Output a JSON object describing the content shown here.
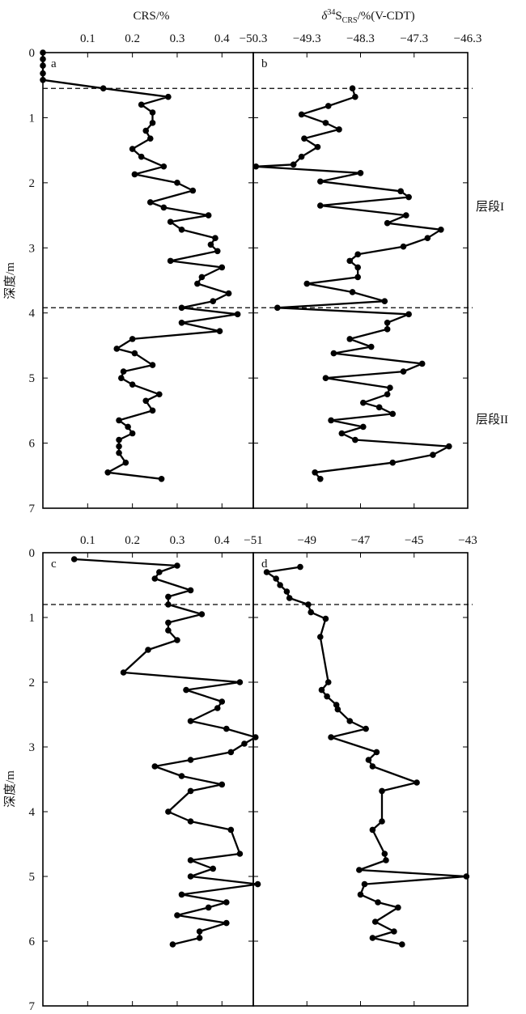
{
  "texts": {
    "crs_title": "CRS/%",
    "d34_title_delta": "δ",
    "d34_title_sup": "34",
    "d34_title_s": "S",
    "d34_title_sub": "CRS",
    "d34_title_unit": "/%(V-CDT)",
    "ylabel_top": "深度/m",
    "ylabel_bottom": "深度/m",
    "interval1": "层段I",
    "interval2": "层段II"
  },
  "chart_data": [
    {
      "id": "a",
      "type": "line",
      "panel_label": "a",
      "xlabel": "CRS/%",
      "ylabel": "深度/m",
      "xlim": [
        0,
        0.47
      ],
      "ylim": [
        7,
        0
      ],
      "xticks": [
        0.1,
        0.2,
        0.3,
        0.4
      ],
      "xtick_labels": [
        "0.1",
        "0.2",
        "0.3",
        "0.4"
      ],
      "yticks": [
        0,
        1,
        2,
        3,
        4,
        5,
        6,
        7
      ],
      "boundaries": [
        0.55,
        3.92
      ],
      "points": [
        [
          0,
          0
        ],
        [
          0,
          0.1
        ],
        [
          0,
          0.2
        ],
        [
          0,
          0.32
        ],
        [
          0,
          0.42
        ],
        [
          0.135,
          0.55
        ],
        [
          0.28,
          0.68
        ],
        [
          0.22,
          0.8
        ],
        [
          0.245,
          0.92
        ],
        [
          0.245,
          1.08
        ],
        [
          0.23,
          1.2
        ],
        [
          0.24,
          1.32
        ],
        [
          0.2,
          1.48
        ],
        [
          0.22,
          1.6
        ],
        [
          0.27,
          1.75
        ],
        [
          0.205,
          1.87
        ],
        [
          0.3,
          2.0
        ],
        [
          0.335,
          2.12
        ],
        [
          0.24,
          2.3
        ],
        [
          0.27,
          2.38
        ],
        [
          0.37,
          2.5
        ],
        [
          0.285,
          2.6
        ],
        [
          0.31,
          2.72
        ],
        [
          0.385,
          2.85
        ],
        [
          0.375,
          2.95
        ],
        [
          0.39,
          3.05
        ],
        [
          0.285,
          3.2
        ],
        [
          0.4,
          3.3
        ],
        [
          0.355,
          3.45
        ],
        [
          0.345,
          3.55
        ],
        [
          0.415,
          3.7
        ],
        [
          0.38,
          3.82
        ],
        [
          0.31,
          3.92
        ],
        [
          0.435,
          4.02
        ],
        [
          0.31,
          4.15
        ],
        [
          0.395,
          4.28
        ],
        [
          0.2,
          4.4
        ],
        [
          0.165,
          4.55
        ],
        [
          0.205,
          4.62
        ],
        [
          0.245,
          4.8
        ],
        [
          0.18,
          4.9
        ],
        [
          0.175,
          5.0
        ],
        [
          0.2,
          5.1
        ],
        [
          0.26,
          5.25
        ],
        [
          0.23,
          5.35
        ],
        [
          0.245,
          5.5
        ],
        [
          0.17,
          5.65
        ],
        [
          0.19,
          5.75
        ],
        [
          0.2,
          5.85
        ],
        [
          0.17,
          5.95
        ],
        [
          0.17,
          6.05
        ],
        [
          0.17,
          6.15
        ],
        [
          0.185,
          6.3
        ],
        [
          0.145,
          6.45
        ],
        [
          0.265,
          6.55
        ]
      ]
    },
    {
      "id": "b",
      "type": "line",
      "panel_label": "b",
      "xlabel": "δ34SCRS/%(V-CDT)",
      "xlim": [
        -50.3,
        -46.3
      ],
      "ylim": [
        7,
        0
      ],
      "xticks": [
        -50.3,
        -49.3,
        -48.3,
        -47.3,
        -46.3
      ],
      "xtick_labels": [
        "−50.3",
        "−49.3",
        "−48.3",
        "−47.3",
        "−46.3"
      ],
      "yticks": [
        0,
        1,
        2,
        3,
        4,
        5,
        6,
        7
      ],
      "boundaries": [
        0.55,
        3.92
      ],
      "points": [
        [
          -48.45,
          0.55
        ],
        [
          -48.4,
          0.68
        ],
        [
          -48.9,
          0.82
        ],
        [
          -49.4,
          0.95
        ],
        [
          -48.95,
          1.08
        ],
        [
          -48.7,
          1.18
        ],
        [
          -49.35,
          1.32
        ],
        [
          -49.1,
          1.45
        ],
        [
          -49.4,
          1.6
        ],
        [
          -49.55,
          1.72
        ],
        [
          -50.25,
          1.75
        ],
        [
          -48.3,
          1.85
        ],
        [
          -49.05,
          1.98
        ],
        [
          -47.55,
          2.13
        ],
        [
          -47.4,
          2.22
        ],
        [
          -49.05,
          2.35
        ],
        [
          -47.45,
          2.5
        ],
        [
          -47.8,
          2.62
        ],
        [
          -46.8,
          2.72
        ],
        [
          -47.05,
          2.85
        ],
        [
          -47.5,
          2.98
        ],
        [
          -48.35,
          3.1
        ],
        [
          -48.5,
          3.2
        ],
        [
          -48.35,
          3.3
        ],
        [
          -48.35,
          3.45
        ],
        [
          -49.3,
          3.55
        ],
        [
          -48.45,
          3.68
        ],
        [
          -47.85,
          3.82
        ],
        [
          -49.85,
          3.92
        ],
        [
          -47.4,
          4.02
        ],
        [
          -47.8,
          4.15
        ],
        [
          -47.8,
          4.25
        ],
        [
          -48.5,
          4.4
        ],
        [
          -48.1,
          4.52
        ],
        [
          -48.8,
          4.62
        ],
        [
          -47.15,
          4.78
        ],
        [
          -47.5,
          4.9
        ],
        [
          -48.95,
          5.0
        ],
        [
          -47.75,
          5.15
        ],
        [
          -47.8,
          5.25
        ],
        [
          -48.25,
          5.38
        ],
        [
          -47.95,
          5.45
        ],
        [
          -47.7,
          5.55
        ],
        [
          -48.85,
          5.65
        ],
        [
          -48.25,
          5.75
        ],
        [
          -48.65,
          5.85
        ],
        [
          -48.4,
          5.95
        ],
        [
          -46.65,
          6.05
        ],
        [
          -46.95,
          6.18
        ],
        [
          -47.7,
          6.3
        ],
        [
          -49.15,
          6.45
        ],
        [
          -49.05,
          6.55
        ]
      ]
    },
    {
      "id": "c",
      "type": "line",
      "panel_label": "c",
      "xlabel": "",
      "ylabel": "深度/m",
      "xlim": [
        0,
        0.47
      ],
      "ylim": [
        7,
        0
      ],
      "xticks": [
        0.1,
        0.2,
        0.3,
        0.4
      ],
      "xtick_labels": [
        "0.1",
        "0.2",
        "0.3",
        "0.4"
      ],
      "yticks": [
        0,
        1,
        2,
        3,
        4,
        5,
        6,
        7
      ],
      "boundaries": [
        0.8
      ],
      "points": [
        [
          0.07,
          0.1
        ],
        [
          0.3,
          0.2
        ],
        [
          0.26,
          0.3
        ],
        [
          0.25,
          0.4
        ],
        [
          0.33,
          0.58
        ],
        [
          0.28,
          0.68
        ],
        [
          0.28,
          0.8
        ],
        [
          0.355,
          0.95
        ],
        [
          0.28,
          1.08
        ],
        [
          0.28,
          1.2
        ],
        [
          0.3,
          1.35
        ],
        [
          0.235,
          1.5
        ],
        [
          0.18,
          1.85
        ],
        [
          0.44,
          2.0
        ],
        [
          0.32,
          2.12
        ],
        [
          0.4,
          2.3
        ],
        [
          0.39,
          2.4
        ],
        [
          0.33,
          2.6
        ],
        [
          0.41,
          2.72
        ],
        [
          0.475,
          2.85
        ],
        [
          0.45,
          2.95
        ],
        [
          0.42,
          3.08
        ],
        [
          0.33,
          3.2
        ],
        [
          0.25,
          3.3
        ],
        [
          0.31,
          3.45
        ],
        [
          0.4,
          3.58
        ],
        [
          0.33,
          3.68
        ],
        [
          0.28,
          4.0
        ],
        [
          0.33,
          4.15
        ],
        [
          0.42,
          4.28
        ],
        [
          0.44,
          4.65
        ],
        [
          0.33,
          4.75
        ],
        [
          0.38,
          4.88
        ],
        [
          0.33,
          5.0
        ],
        [
          0.48,
          5.12
        ],
        [
          0.31,
          5.28
        ],
        [
          0.41,
          5.4
        ],
        [
          0.37,
          5.48
        ],
        [
          0.3,
          5.6
        ],
        [
          0.41,
          5.72
        ],
        [
          0.35,
          5.85
        ],
        [
          0.35,
          5.95
        ],
        [
          0.29,
          6.05
        ]
      ]
    },
    {
      "id": "d",
      "type": "line",
      "panel_label": "d",
      "xlabel": "",
      "xlim": [
        -51,
        -43
      ],
      "ylim": [
        7,
        0
      ],
      "xticks": [
        -51,
        -49,
        -47,
        -45,
        -43
      ],
      "xtick_labels": [
        "−51",
        "−49",
        "−47",
        "−45",
        "−43"
      ],
      "yticks": [
        0,
        1,
        2,
        3,
        4,
        5,
        6,
        7
      ],
      "boundaries": [
        0.8
      ],
      "points": [
        [
          -49.25,
          0.22
        ],
        [
          -50.5,
          0.3
        ],
        [
          -50.15,
          0.4
        ],
        [
          -50,
          0.5
        ],
        [
          -49.75,
          0.6
        ],
        [
          -49.65,
          0.7
        ],
        [
          -48.95,
          0.8
        ],
        [
          -48.85,
          0.92
        ],
        [
          -48.3,
          1.02
        ],
        [
          -48.5,
          1.3
        ],
        [
          -48.2,
          2.0
        ],
        [
          -48.45,
          2.12
        ],
        [
          -48.25,
          2.22
        ],
        [
          -47.9,
          2.35
        ],
        [
          -47.85,
          2.42
        ],
        [
          -47.4,
          2.6
        ],
        [
          -46.8,
          2.72
        ],
        [
          -48.1,
          2.85
        ],
        [
          -46.4,
          3.08
        ],
        [
          -46.7,
          3.2
        ],
        [
          -46.55,
          3.3
        ],
        [
          -44.9,
          3.55
        ],
        [
          -46.2,
          3.68
        ],
        [
          -46.2,
          4.15
        ],
        [
          -46.55,
          4.28
        ],
        [
          -46.1,
          4.65
        ],
        [
          -46.05,
          4.75
        ],
        [
          -47.05,
          4.9
        ],
        [
          -43.05,
          5.0
        ],
        [
          -46.85,
          5.12
        ],
        [
          -47,
          5.28
        ],
        [
          -46.35,
          5.4
        ],
        [
          -45.6,
          5.48
        ],
        [
          -46.45,
          5.7
        ],
        [
          -45.75,
          5.85
        ],
        [
          -46.55,
          5.95
        ],
        [
          -45.45,
          6.05
        ]
      ]
    }
  ]
}
